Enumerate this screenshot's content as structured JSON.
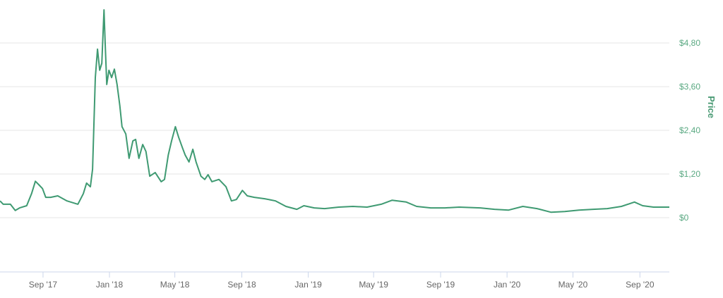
{
  "chart_data": {
    "type": "line",
    "title": "",
    "xlabel": "",
    "ylabel": "Price",
    "line_color": "#3f9a72",
    "label_color": "#5aa982",
    "grid": true,
    "xlim": [
      "2017-06-14",
      "2020-10-25"
    ],
    "ylim": [
      -1.49,
      5.98
    ],
    "y_ticks": [
      {
        "value": 0,
        "label": "$0"
      },
      {
        "value": 1.2,
        "label": "$1,20"
      },
      {
        "value": 2.4,
        "label": "$2,40"
      },
      {
        "value": 3.6,
        "label": "$3,60"
      },
      {
        "value": 4.8,
        "label": "$4,80"
      }
    ],
    "x_ticks": [
      {
        "date": "2017-09-01",
        "label": "Sep '17"
      },
      {
        "date": "2018-01-01",
        "label": "Jan '18"
      },
      {
        "date": "2018-05-01",
        "label": "May '18"
      },
      {
        "date": "2018-09-01",
        "label": "Sep '18"
      },
      {
        "date": "2019-01-01",
        "label": "Jan '19"
      },
      {
        "date": "2019-05-01",
        "label": "May '19"
      },
      {
        "date": "2019-09-01",
        "label": "Sep '19"
      },
      {
        "date": "2020-01-01",
        "label": "Jan '20"
      },
      {
        "date": "2020-05-01",
        "label": "May '20"
      },
      {
        "date": "2020-09-01",
        "label": "Sep '20"
      }
    ],
    "series": [
      {
        "points": [
          [
            "2017-06-14",
            0.46
          ],
          [
            "2017-06-20",
            0.37
          ],
          [
            "2017-07-03",
            0.37
          ],
          [
            "2017-07-12",
            0.2
          ],
          [
            "2017-07-20",
            0.27
          ],
          [
            "2017-08-02",
            0.33
          ],
          [
            "2017-08-11",
            0.66
          ],
          [
            "2017-08-18",
            1.0
          ],
          [
            "2017-08-24",
            0.91
          ],
          [
            "2017-08-31",
            0.8
          ],
          [
            "2017-09-06",
            0.56
          ],
          [
            "2017-09-15",
            0.56
          ],
          [
            "2017-09-28",
            0.6
          ],
          [
            "2017-10-15",
            0.46
          ],
          [
            "2017-11-04",
            0.37
          ],
          [
            "2017-11-14",
            0.66
          ],
          [
            "2017-11-20",
            0.95
          ],
          [
            "2017-11-27",
            0.85
          ],
          [
            "2017-12-01",
            1.33
          ],
          [
            "2017-12-06",
            3.85
          ],
          [
            "2017-12-10",
            4.63
          ],
          [
            "2017-12-14",
            4.05
          ],
          [
            "2017-12-18",
            4.24
          ],
          [
            "2017-12-22",
            5.71
          ],
          [
            "2017-12-24",
            4.82
          ],
          [
            "2017-12-27",
            3.66
          ],
          [
            "2017-12-31",
            4.05
          ],
          [
            "2018-01-05",
            3.85
          ],
          [
            "2018-01-10",
            4.08
          ],
          [
            "2018-01-15",
            3.66
          ],
          [
            "2018-01-20",
            3.08
          ],
          [
            "2018-01-24",
            2.5
          ],
          [
            "2018-01-31",
            2.3
          ],
          [
            "2018-02-06",
            1.63
          ],
          [
            "2018-02-13",
            2.11
          ],
          [
            "2018-02-18",
            2.15
          ],
          [
            "2018-02-24",
            1.63
          ],
          [
            "2018-03-03",
            2.01
          ],
          [
            "2018-03-09",
            1.82
          ],
          [
            "2018-03-16",
            1.14
          ],
          [
            "2018-03-26",
            1.24
          ],
          [
            "2018-04-06",
            0.99
          ],
          [
            "2018-04-12",
            1.05
          ],
          [
            "2018-04-19",
            1.72
          ],
          [
            "2018-04-25",
            2.11
          ],
          [
            "2018-05-02",
            2.5
          ],
          [
            "2018-05-08",
            2.21
          ],
          [
            "2018-05-15",
            1.92
          ],
          [
            "2018-05-20",
            1.72
          ],
          [
            "2018-05-27",
            1.53
          ],
          [
            "2018-06-03",
            1.88
          ],
          [
            "2018-06-09",
            1.53
          ],
          [
            "2018-06-18",
            1.14
          ],
          [
            "2018-06-25",
            1.05
          ],
          [
            "2018-07-01",
            1.18
          ],
          [
            "2018-07-08",
            0.99
          ],
          [
            "2018-07-21",
            1.05
          ],
          [
            "2018-08-03",
            0.85
          ],
          [
            "2018-08-13",
            0.46
          ],
          [
            "2018-08-22",
            0.5
          ],
          [
            "2018-09-02",
            0.75
          ],
          [
            "2018-09-11",
            0.6
          ],
          [
            "2018-09-24",
            0.56
          ],
          [
            "2018-10-13",
            0.52
          ],
          [
            "2018-11-02",
            0.46
          ],
          [
            "2018-11-21",
            0.31
          ],
          [
            "2018-12-11",
            0.23
          ],
          [
            "2018-12-24",
            0.33
          ],
          [
            "2019-01-12",
            0.27
          ],
          [
            "2019-01-31",
            0.25
          ],
          [
            "2019-02-26",
            0.29
          ],
          [
            "2019-03-24",
            0.31
          ],
          [
            "2019-04-19",
            0.29
          ],
          [
            "2019-05-15",
            0.37
          ],
          [
            "2019-06-04",
            0.48
          ],
          [
            "2019-06-30",
            0.43
          ],
          [
            "2019-07-19",
            0.31
          ],
          [
            "2019-08-14",
            0.27
          ],
          [
            "2019-09-09",
            0.27
          ],
          [
            "2019-10-05",
            0.29
          ],
          [
            "2019-11-13",
            0.27
          ],
          [
            "2019-12-09",
            0.23
          ],
          [
            "2020-01-04",
            0.21
          ],
          [
            "2020-01-30",
            0.31
          ],
          [
            "2020-02-25",
            0.25
          ],
          [
            "2020-03-22",
            0.15
          ],
          [
            "2020-04-16",
            0.17
          ],
          [
            "2020-05-12",
            0.21
          ],
          [
            "2020-06-07",
            0.23
          ],
          [
            "2020-07-03",
            0.25
          ],
          [
            "2020-07-29",
            0.31
          ],
          [
            "2020-08-22",
            0.43
          ],
          [
            "2020-09-06",
            0.33
          ],
          [
            "2020-09-26",
            0.29
          ],
          [
            "2020-10-25",
            0.29
          ]
        ]
      }
    ]
  }
}
